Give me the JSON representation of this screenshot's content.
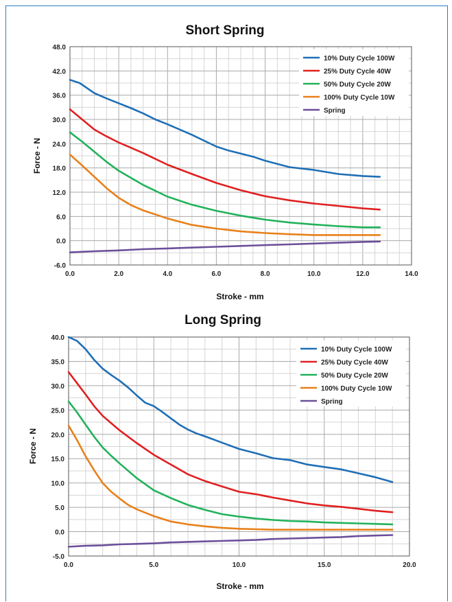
{
  "chart_data": [
    {
      "type": "line",
      "title": "Short Spring",
      "xlabel": "Stroke - mm",
      "ylabel": "Force - N",
      "xlim": [
        0,
        14
      ],
      "ylim": [
        -6,
        48
      ],
      "xticks": [
        "0.0",
        "2.0",
        "4.0",
        "6.0",
        "8.0",
        "10.0",
        "12.0",
        "14.0"
      ],
      "yticks": [
        "-6.0",
        "0.0",
        "6.0",
        "12.0",
        "18.0",
        "24.0",
        "30.0",
        "36.0",
        "42.0",
        "48.0"
      ],
      "legend_position": "top-right",
      "grid": true,
      "series": [
        {
          "name": "10% Duty Cycle 100W",
          "color": "#1f6fb5",
          "x": [
            0,
            0.4,
            1,
            1.5,
            2,
            2.5,
            3,
            3.5,
            4,
            5,
            6,
            6.5,
            7.5,
            8,
            9,
            10,
            11,
            12,
            12.7
          ],
          "y": [
            39.8,
            39,
            36.5,
            35.2,
            34,
            32.8,
            31.5,
            30,
            28.8,
            26.2,
            23.3,
            22.3,
            20.8,
            19.8,
            18.2,
            17.5,
            16.5,
            16,
            15.8
          ]
        },
        {
          "name": "25% Duty Cycle 40W",
          "color": "#e02020",
          "x": [
            0,
            0.5,
            1,
            1.5,
            2,
            3,
            4,
            5,
            6,
            7,
            8,
            9,
            10,
            11,
            12,
            12.7
          ],
          "y": [
            32.5,
            30,
            27.5,
            25.8,
            24.3,
            21.7,
            18.8,
            16.5,
            14.3,
            12.5,
            11,
            10,
            9.2,
            8.6,
            8,
            7.7
          ]
        },
        {
          "name": "50% Duty Cycle 20W",
          "color": "#21b25a",
          "x": [
            0,
            0.5,
            1,
            1.5,
            2,
            3,
            4,
            5,
            6,
            7,
            8,
            9,
            10,
            11,
            12,
            12.7
          ],
          "y": [
            26.8,
            24.5,
            22,
            19.5,
            17.3,
            13.8,
            10.9,
            8.9,
            7.4,
            6.2,
            5.2,
            4.5,
            4,
            3.6,
            3.3,
            3.3
          ]
        },
        {
          "name": "100% Duty Cycle 10W",
          "color": "#e8801a",
          "x": [
            0,
            0.5,
            1,
            1.5,
            2,
            2.5,
            3,
            4,
            5,
            6,
            7,
            8,
            9,
            10,
            11,
            12,
            12.7
          ],
          "y": [
            21.3,
            18.6,
            15.8,
            13,
            10.6,
            8.8,
            7.5,
            5.5,
            3.9,
            3,
            2.3,
            1.9,
            1.6,
            1.4,
            1.4,
            1.4,
            1.4
          ]
        },
        {
          "name": "Spring",
          "color": "#6b4f9a",
          "x": [
            0,
            1,
            2,
            3,
            4,
            5,
            6,
            7,
            8,
            9,
            10,
            11,
            12,
            12.7
          ],
          "y": [
            -2.9,
            -2.6,
            -2.4,
            -2.1,
            -1.9,
            -1.7,
            -1.5,
            -1.3,
            -1.1,
            -0.9,
            -0.7,
            -0.5,
            -0.3,
            -0.2
          ]
        }
      ]
    },
    {
      "type": "line",
      "title": "Long Spring",
      "xlabel": "Stroke - mm",
      "ylabel": "Force - N",
      "xlim": [
        0,
        20
      ],
      "ylim": [
        -5,
        40
      ],
      "xticks": [
        "0.0",
        "5.0",
        "10.0",
        "15.0",
        "20.0"
      ],
      "yticks": [
        "-5.0",
        "0.0",
        "5.0",
        "10.0",
        "15.0",
        "20.0",
        "25.0",
        "30.0",
        "35.0",
        "40.0"
      ],
      "legend_position": "top-right",
      "grid": true,
      "series": [
        {
          "name": "10% Duty Cycle 100W",
          "color": "#1f6fb5",
          "x": [
            0,
            0.5,
            1,
            1.5,
            2,
            2.5,
            3,
            3.5,
            4,
            4.5,
            5,
            5.5,
            6,
            6.5,
            7,
            7.5,
            8,
            9,
            10,
            11,
            12,
            13,
            14,
            15,
            16,
            17,
            18,
            19
          ],
          "y": [
            40,
            39.2,
            37.5,
            35.3,
            33.5,
            32.2,
            31,
            29.6,
            28,
            26.5,
            25.8,
            24.6,
            23.3,
            22,
            21,
            20.2,
            19.6,
            18.3,
            17,
            16.1,
            15.1,
            14.7,
            13.8,
            13.3,
            12.8,
            12,
            11.2,
            10.2
          ]
        },
        {
          "name": "25% Duty Cycle 40W",
          "color": "#e02020",
          "x": [
            0,
            0.5,
            1,
            1.5,
            2,
            2.5,
            3,
            4,
            5,
            6,
            7,
            8,
            9,
            10,
            11,
            12,
            13,
            14,
            15,
            16,
            17,
            18,
            19
          ],
          "y": [
            32.8,
            30.5,
            28.2,
            25.8,
            23.8,
            22.3,
            20.8,
            18.2,
            15.8,
            13.8,
            11.8,
            10.4,
            9.3,
            8.2,
            7.7,
            7,
            6.4,
            5.8,
            5.4,
            5.1,
            4.7,
            4.3,
            4
          ]
        },
        {
          "name": "50% Duty Cycle 20W",
          "color": "#21b25a",
          "x": [
            0,
            0.5,
            1,
            1.5,
            2,
            2.5,
            3,
            4,
            5,
            6,
            7,
            8,
            9,
            10,
            11,
            12,
            13,
            14,
            15,
            16,
            17,
            18,
            19
          ],
          "y": [
            26.8,
            24.5,
            22,
            19.5,
            17.3,
            15.6,
            14,
            11,
            8.5,
            6.9,
            5.5,
            4.5,
            3.6,
            3.1,
            2.7,
            2.4,
            2.2,
            2.1,
            1.9,
            1.8,
            1.7,
            1.6,
            1.5
          ]
        },
        {
          "name": "100% Duty Cycle 10W",
          "color": "#e8801a",
          "x": [
            0,
            0.5,
            1,
            1.5,
            2,
            2.5,
            3,
            3.5,
            4,
            5,
            6,
            7,
            8,
            9,
            10,
            11,
            12,
            13,
            14,
            15,
            16,
            17,
            18,
            19
          ],
          "y": [
            21.8,
            18.8,
            15.5,
            12.6,
            10,
            8.2,
            6.8,
            5.5,
            4.6,
            3.2,
            2.1,
            1.5,
            1.1,
            0.8,
            0.6,
            0.5,
            0.4,
            0.4,
            0.4,
            0.4,
            0.4,
            0.4,
            0.4,
            0.4
          ]
        },
        {
          "name": "Spring",
          "color": "#6b4f9a",
          "x": [
            0,
            1,
            2,
            3,
            4,
            5,
            6,
            7,
            8,
            9,
            10,
            11,
            12,
            13,
            14,
            15,
            16,
            17,
            18,
            19
          ],
          "y": [
            -3.1,
            -2.9,
            -2.8,
            -2.6,
            -2.5,
            -2.4,
            -2.2,
            -2.1,
            -2,
            -1.9,
            -1.8,
            -1.7,
            -1.5,
            -1.4,
            -1.3,
            -1.2,
            -1.1,
            -0.9,
            -0.8,
            -0.7
          ]
        }
      ]
    }
  ]
}
